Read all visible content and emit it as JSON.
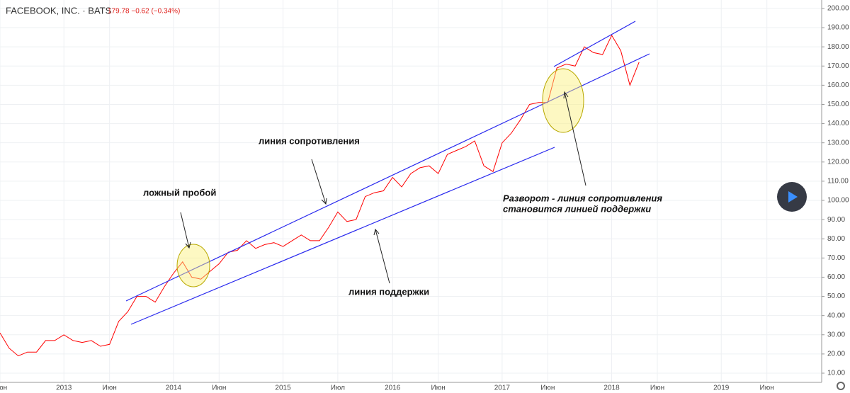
{
  "chart_data": {
    "type": "line",
    "title": "FACEBOOK, INC. · BATS",
    "quote": "179.78 −0.62 (−0.34%)",
    "color": "#ff0000",
    "x": [
      "2012-06",
      "2012-07",
      "2012-08",
      "2012-09",
      "2012-10",
      "2012-11",
      "2012-12",
      "2013-01",
      "2013-02",
      "2013-03",
      "2013-04",
      "2013-05",
      "2013-06",
      "2013-07",
      "2013-08",
      "2013-09",
      "2013-10",
      "2013-11",
      "2013-12",
      "2014-01",
      "2014-02",
      "2014-03",
      "2014-04",
      "2014-05",
      "2014-06",
      "2014-07",
      "2014-08",
      "2014-09",
      "2014-10",
      "2014-11",
      "2014-12",
      "2015-01",
      "2015-02",
      "2015-03",
      "2015-04",
      "2015-05",
      "2015-06",
      "2015-07",
      "2015-08",
      "2015-09",
      "2015-10",
      "2015-11",
      "2015-12",
      "2016-01",
      "2016-02",
      "2016-03",
      "2016-04",
      "2016-05",
      "2016-06",
      "2016-07",
      "2016-08",
      "2016-09",
      "2016-10",
      "2016-11",
      "2016-12",
      "2017-01",
      "2017-02",
      "2017-03",
      "2017-04",
      "2017-05",
      "2017-06",
      "2017-07",
      "2017-08",
      "2017-09",
      "2017-10",
      "2017-11",
      "2017-12",
      "2018-01",
      "2018-02",
      "2018-03",
      "2018-04"
    ],
    "values": [
      31,
      23,
      19,
      21,
      21,
      27,
      27,
      30,
      27,
      26,
      27,
      24,
      25,
      37,
      42,
      50,
      50,
      47,
      55,
      62,
      68,
      60,
      59,
      63,
      67,
      73,
      74,
      79,
      75,
      77,
      78,
      76,
      79,
      82,
      79,
      79,
      86,
      94,
      89,
      90,
      102,
      104,
      105,
      112,
      107,
      114,
      117,
      118,
      114,
      124,
      126,
      128,
      131,
      118,
      115,
      130,
      135,
      142,
      150,
      151,
      151,
      169,
      171,
      170,
      180,
      177,
      176,
      186,
      178,
      160,
      172
    ],
    "xlim": [
      "2012-06",
      "2019-12"
    ],
    "xticks": [
      {
        "value": "2012-06",
        "label": "Июн"
      },
      {
        "value": "2013-01",
        "label": "2013"
      },
      {
        "value": "2013-06",
        "label": "Июн"
      },
      {
        "value": "2014-01",
        "label": "2014"
      },
      {
        "value": "2014-06",
        "label": "Июн"
      },
      {
        "value": "2015-01",
        "label": "2015"
      },
      {
        "value": "2015-07",
        "label": "Июл"
      },
      {
        "value": "2016-01",
        "label": "2016"
      },
      {
        "value": "2016-06",
        "label": "Июн"
      },
      {
        "value": "2017-01",
        "label": "2017"
      },
      {
        "value": "2017-06",
        "label": "Июн"
      },
      {
        "value": "2018-01",
        "label": "2018"
      },
      {
        "value": "2018-06",
        "label": "Июн"
      },
      {
        "value": "2019-01",
        "label": "2019"
      },
      {
        "value": "2019-06",
        "label": "Июн"
      }
    ],
    "ylim": [
      5.2,
      204.4
    ],
    "yticks": [
      {
        "value": 10,
        "label": "10.00"
      },
      {
        "value": 20,
        "label": "20.00"
      },
      {
        "value": 30,
        "label": "30.00"
      },
      {
        "value": 40,
        "label": "40.00"
      },
      {
        "value": 50,
        "label": "50.00"
      },
      {
        "value": 60,
        "label": "60.00"
      },
      {
        "value": 70,
        "label": "70.00"
      },
      {
        "value": 80,
        "label": "80.00"
      },
      {
        "value": 90,
        "label": "90.00"
      },
      {
        "value": 100,
        "label": "100.00"
      },
      {
        "value": 110,
        "label": "110.00"
      },
      {
        "value": 120,
        "label": "120.00"
      },
      {
        "value": 130,
        "label": "130.00"
      },
      {
        "value": 140,
        "label": "140.00"
      },
      {
        "value": 150,
        "label": "150.00"
      },
      {
        "value": 160,
        "label": "160.00"
      },
      {
        "value": 170,
        "label": "170.00"
      },
      {
        "value": 180,
        "label": "180.00"
      },
      {
        "value": 190,
        "label": "190.00"
      },
      {
        "value": 200,
        "label": "200.00"
      }
    ],
    "grid": true,
    "annotations": [
      "линия сопротивления",
      "ложный пробой",
      "линия поддержки",
      "Разворот - линия сопротивления",
      "становится линией поддержки"
    ]
  }
}
